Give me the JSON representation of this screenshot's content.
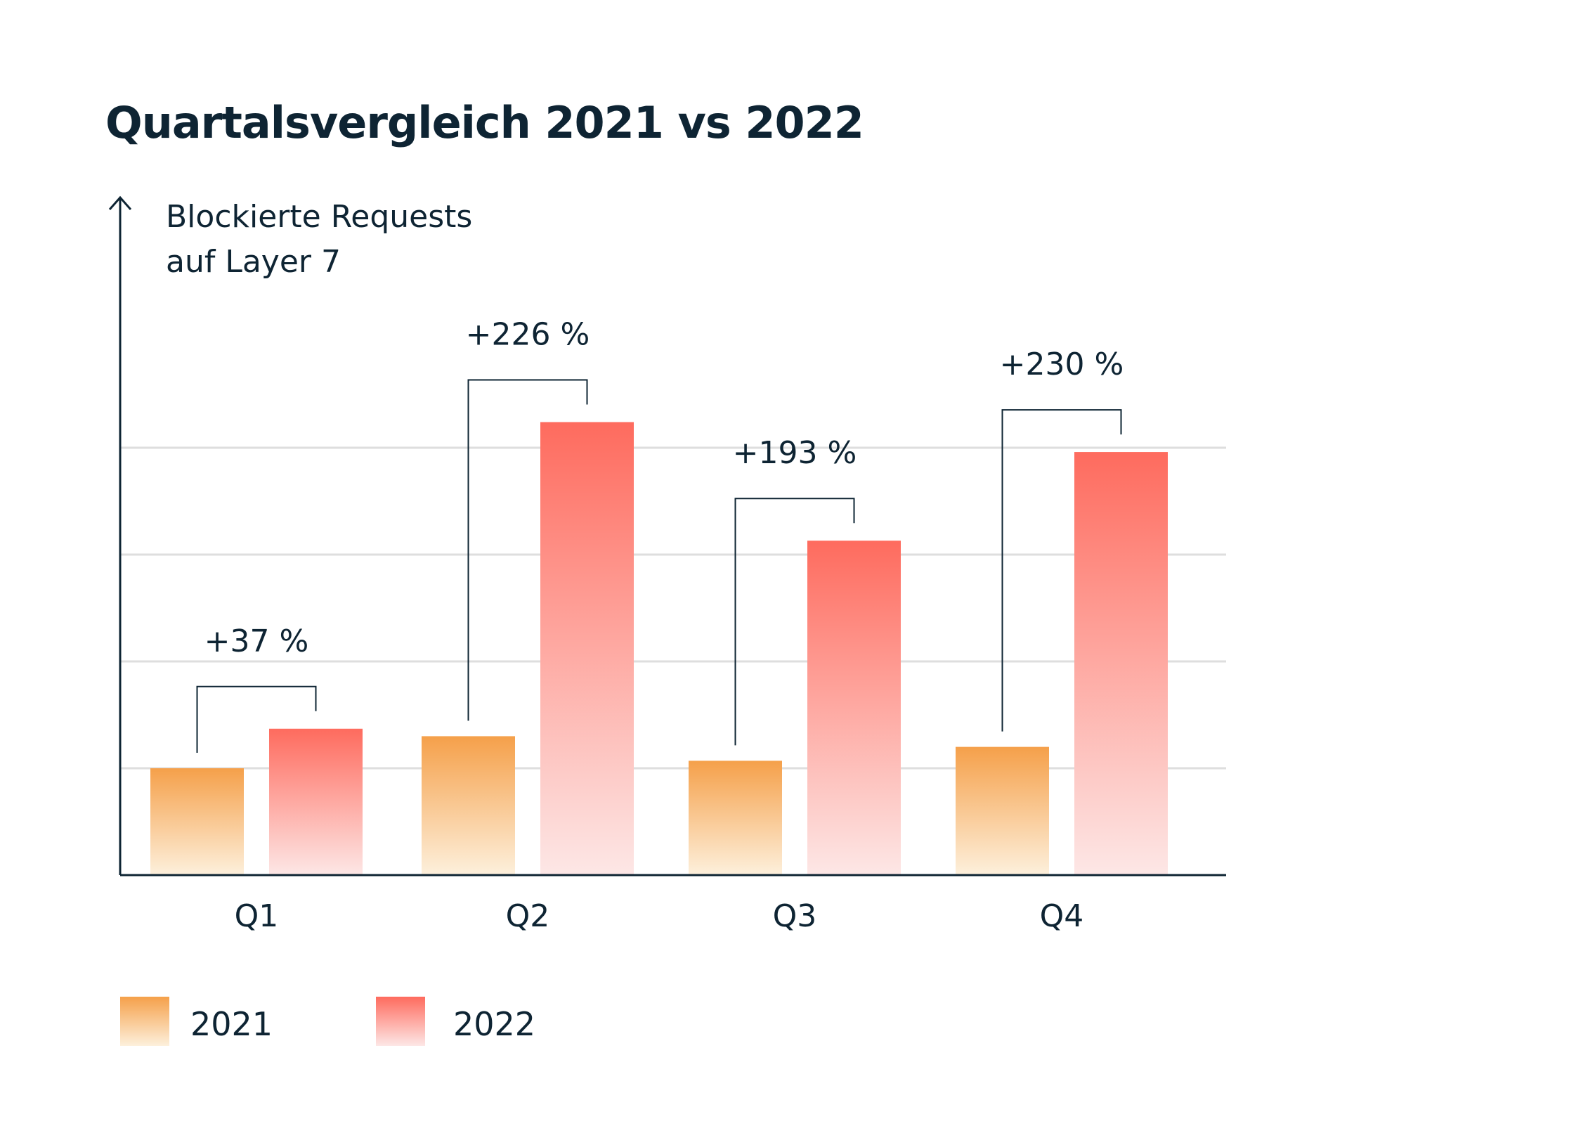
{
  "chart_data": {
    "type": "bar",
    "title": "Quartalsvergleich 2021 vs 2022",
    "ylabel": [
      "Blockierte Requests",
      "auf Layer 7"
    ],
    "xlabel": "",
    "categories": [
      "Q1",
      "Q2",
      "Q3",
      "Q4"
    ],
    "series": [
      {
        "name": "2021",
        "values": [
          1.0,
          1.3,
          1.07,
          1.2
        ],
        "color_top": "#f5a04a",
        "color_bottom": "#fdf0dc"
      },
      {
        "name": "2022",
        "values": [
          1.37,
          4.24,
          3.13,
          3.96
        ],
        "color_top": "#fe6b5e",
        "color_bottom": "#fde7e6"
      }
    ],
    "annotations": [
      "+37 %",
      "+226 %",
      "+193 %",
      "+230 %"
    ],
    "ylim": [
      0,
      4.5
    ],
    "yticks": [
      1,
      2,
      3,
      4
    ],
    "grid": true,
    "y_tick_labels_shown": false,
    "legend_position": "bottom-left",
    "colors": {
      "axis": "#0e2433",
      "grid": "#dedede",
      "text": "#0e2433"
    }
  }
}
